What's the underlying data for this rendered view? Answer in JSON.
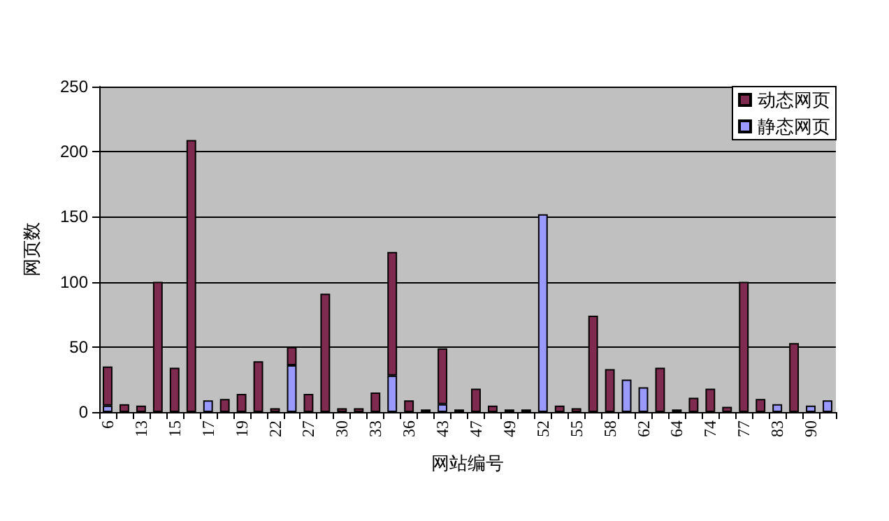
{
  "chart_data": {
    "type": "bar",
    "stacked": true,
    "xlabel": "网站编号",
    "ylabel": "网页数",
    "categories": [
      "6",
      null,
      "13",
      null,
      "15",
      null,
      "17",
      null,
      "19",
      null,
      "22",
      null,
      "27",
      null,
      "30",
      null,
      "33",
      null,
      "36",
      null,
      "43",
      null,
      "47",
      null,
      "49",
      null,
      "52",
      null,
      "55",
      null,
      "58",
      null,
      "62",
      null,
      "64",
      null,
      "74",
      null,
      "77",
      null,
      "83",
      null,
      "90",
      null
    ],
    "series": [
      {
        "name": "静态网页",
        "color": "#9999ff",
        "values": [
          5,
          null,
          null,
          null,
          null,
          null,
          9,
          null,
          null,
          null,
          null,
          36,
          null,
          null,
          null,
          null,
          null,
          28,
          null,
          null,
          6,
          null,
          null,
          null,
          null,
          null,
          152,
          null,
          null,
          null,
          null,
          25,
          19,
          null,
          null,
          null,
          null,
          null,
          null,
          null,
          6,
          null,
          5,
          9
        ]
      },
      {
        "name": "动态网页",
        "color": "#7f2a4f",
        "values": [
          30,
          6,
          5,
          100,
          34,
          209,
          null,
          10,
          14,
          39,
          3,
          14,
          14,
          91,
          3,
          3,
          15,
          95,
          9,
          2,
          43,
          2,
          18,
          5,
          2,
          2,
          null,
          5,
          3,
          74,
          33,
          null,
          null,
          34,
          2,
          11,
          18,
          4,
          100,
          10,
          null,
          53,
          null,
          null
        ]
      }
    ],
    "ylim": [
      0,
      250
    ],
    "yticks": [
      0,
      50,
      100,
      150,
      200,
      250
    ],
    "grid": "y",
    "legend": "top right"
  }
}
